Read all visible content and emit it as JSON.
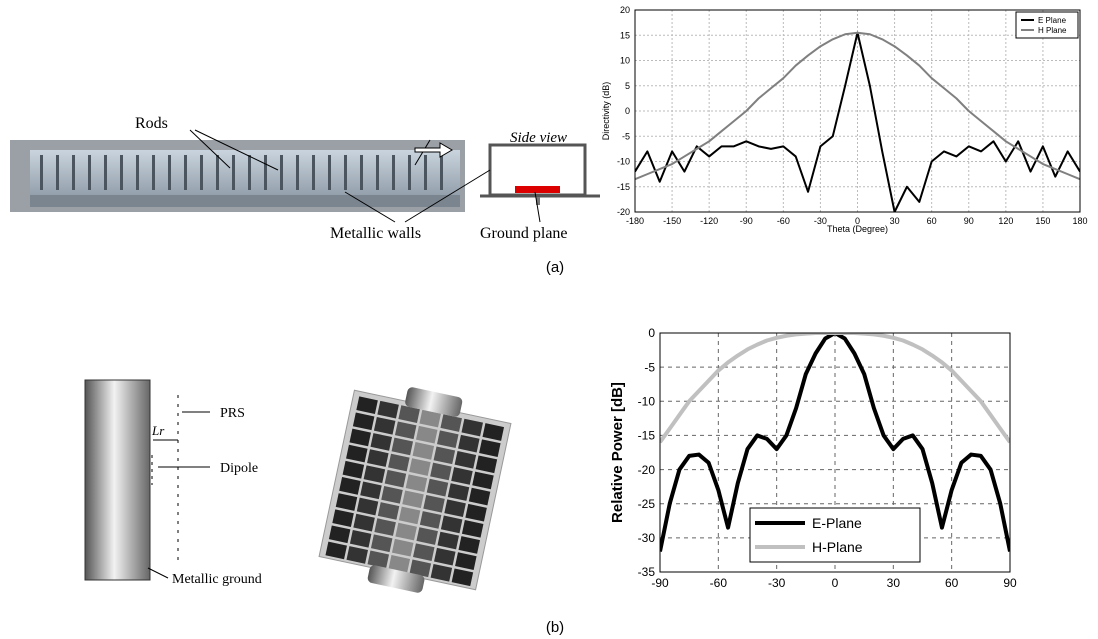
{
  "chart_data": [
    {
      "type": "line",
      "ylabel": "Directivity (dB)",
      "xlabel": "Theta (Degree)",
      "x": [
        -180,
        -170,
        -160,
        -150,
        -140,
        -130,
        -120,
        -110,
        -100,
        -90,
        -80,
        -70,
        -60,
        -50,
        -40,
        -30,
        -20,
        -10,
        0,
        10,
        20,
        30,
        40,
        50,
        60,
        70,
        80,
        90,
        100,
        110,
        120,
        130,
        140,
        150,
        160,
        170,
        180
      ],
      "series": [
        {
          "name": "E Plane",
          "color": "#000000",
          "values": [
            -12,
            -8,
            -14,
            -8,
            -12,
            -7,
            -9,
            -7,
            -7,
            -6,
            -7,
            -7.5,
            -7,
            -9,
            -16,
            -7,
            -5,
            5,
            15.5,
            5,
            -8,
            -20,
            -15,
            -18,
            -10,
            -8,
            -9,
            -7,
            -8,
            -6,
            -10,
            -6,
            -12,
            -7,
            -13,
            -8,
            -12
          ]
        },
        {
          "name": "H Plane",
          "color": "#808080",
          "values": [
            -13.5,
            -12.5,
            -11.5,
            -10.5,
            -9,
            -7.5,
            -6,
            -4,
            -2,
            0,
            2.5,
            4.5,
            6.5,
            9,
            11,
            12.8,
            14.2,
            15.2,
            15.5,
            15.2,
            14.2,
            12.8,
            11,
            9,
            6.5,
            4.5,
            2.5,
            0,
            -2,
            -4,
            -6,
            -7.5,
            -9,
            -10.5,
            -11.5,
            -12.5,
            -13.5
          ]
        }
      ],
      "xlim": [
        -180,
        180
      ],
      "xticks": [
        -180,
        -150,
        -120,
        -90,
        -60,
        -30,
        0,
        30,
        60,
        90,
        120,
        150,
        180
      ],
      "ylim": [
        -20,
        20
      ],
      "yticks": [
        -20,
        -15,
        -10,
        -5,
        0,
        5,
        10,
        15,
        20
      ],
      "grid": true,
      "legend": "upper-right"
    },
    {
      "type": "line",
      "ylabel": "Relative Power [dB]",
      "x": [
        -90,
        -85,
        -80,
        -75,
        -70,
        -65,
        -60,
        -55,
        -50,
        -45,
        -40,
        -35,
        -30,
        -25,
        -20,
        -15,
        -10,
        -5,
        0,
        5,
        10,
        15,
        20,
        25,
        30,
        35,
        40,
        45,
        50,
        55,
        60,
        65,
        70,
        75,
        80,
        85,
        90
      ],
      "series": [
        {
          "name": "E-Plane",
          "color": "#000000",
          "values": [
            -32,
            -25,
            -20,
            -18,
            -17.8,
            -19,
            -23,
            -28.5,
            -22,
            -17,
            -15,
            -15.5,
            -17,
            -15,
            -11,
            -6,
            -3,
            -0.8,
            0,
            -0.8,
            -3,
            -6,
            -11,
            -15,
            -17,
            -15.5,
            -15,
            -17,
            -22,
            -28.5,
            -23,
            -19,
            -17.8,
            -18,
            -20,
            -25,
            -32
          ]
        },
        {
          "name": "H-Plane",
          "color": "#c0c0c0",
          "values": [
            -16,
            -14,
            -12,
            -10,
            -8.5,
            -7,
            -5.5,
            -4.3,
            -3.3,
            -2.4,
            -1.7,
            -1.1,
            -0.7,
            -0.4,
            -0.2,
            -0.1,
            0,
            0,
            0,
            0,
            0,
            -0.1,
            -0.2,
            -0.4,
            -0.7,
            -1.1,
            -1.7,
            -2.4,
            -3.3,
            -4.3,
            -5.5,
            -7,
            -8.5,
            -10,
            -12,
            -14,
            -16
          ]
        }
      ],
      "xlim": [
        -90,
        90
      ],
      "xticks": [
        -90,
        -60,
        -30,
        0,
        30,
        60,
        90
      ],
      "ylim": [
        -35,
        0
      ],
      "yticks": [
        -35,
        -30,
        -25,
        -20,
        -15,
        -10,
        -5,
        0
      ],
      "grid": true,
      "legend": "lower-center"
    }
  ],
  "figure": {
    "rods": "Rods",
    "side_view": "Side view",
    "walls": "Metallic walls",
    "ground_plane": "Ground plane",
    "caption_a": "(a)",
    "prs": "PRS",
    "lr": "Lr",
    "dipole": "Dipole",
    "metallic_ground": "Metallic ground",
    "caption_b": "(b)"
  }
}
